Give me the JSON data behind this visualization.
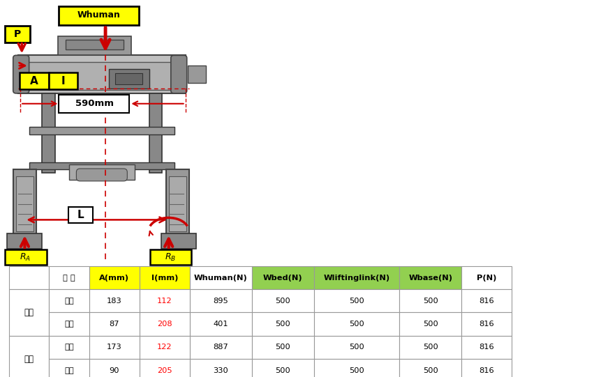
{
  "fig_width": 8.51,
  "fig_height": 5.41,
  "bg_color": "#ffffff",
  "table": {
    "col_labels": [
      "구 분",
      "A(mm)",
      "I(mm)",
      "Whuman(N)",
      "Wbed(N)",
      "Wliftinglink(N)",
      "Wbase(N)",
      "P(N)"
    ],
    "col_header_colors": [
      "#ffffff",
      "#ffff00",
      "#ffff00",
      "#ffffff",
      "#92d050",
      "#92d050",
      "#92d050",
      "#ffffff"
    ],
    "rows": [
      [
        "남성",
        "최대",
        "183",
        "112",
        "895",
        "500",
        "500",
        "500",
        "816"
      ],
      [
        "남성",
        "최소",
        "87",
        "208",
        "401",
        "500",
        "500",
        "500",
        "816"
      ],
      [
        "여성",
        "최대",
        "173",
        "122",
        "887",
        "500",
        "500",
        "500",
        "816"
      ],
      [
        "여성",
        "최소",
        "90",
        "205",
        "330",
        "500",
        "500",
        "500",
        "816"
      ]
    ]
  },
  "diagram": {
    "whuman_box_color": "#ffff00",
    "arrow_color": "#cc0000"
  }
}
